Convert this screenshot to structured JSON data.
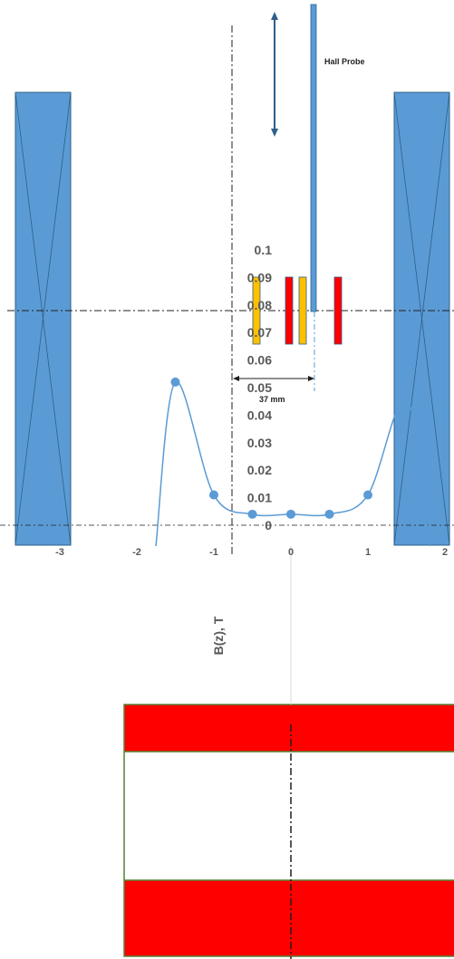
{
  "labels": {
    "hall_probe": "Hall Probe",
    "distance": "37 mm"
  },
  "colors": {
    "coil_fill": "#5b9bd5",
    "coil_line": "#2e5f8a",
    "sample_red": "#ff0000",
    "sample_orange": "#ffc000",
    "curve": "#5b9bd5",
    "band_red": "#ff0000",
    "band_border": "#548235"
  },
  "chart_data": {
    "type": "scatter",
    "ylabel": "B(z), T",
    "xlabel": "",
    "yticks": [
      "0",
      "0.01",
      "0.02",
      "0.03",
      "0.04",
      "0.05",
      "0.06",
      "0.07",
      "0.08",
      "0.09",
      "0.1"
    ],
    "xticks": [
      "-3",
      "-2",
      "-1",
      "0",
      "1",
      "2"
    ],
    "ylim": [
      0,
      0.1
    ],
    "xlim": [
      -3,
      2
    ],
    "grid": false,
    "series": [
      {
        "points": [
          {
            "x": -1.5,
            "y": 0.052
          },
          {
            "x": -1.0,
            "y": 0.011
          },
          {
            "x": -0.5,
            "y": 0.004
          },
          {
            "x": 0.0,
            "y": 0.004
          },
          {
            "x": 0.5,
            "y": 0.004
          },
          {
            "x": 1.0,
            "y": 0.011
          },
          {
            "x": 1.5,
            "y": 0.046
          }
        ]
      }
    ]
  }
}
